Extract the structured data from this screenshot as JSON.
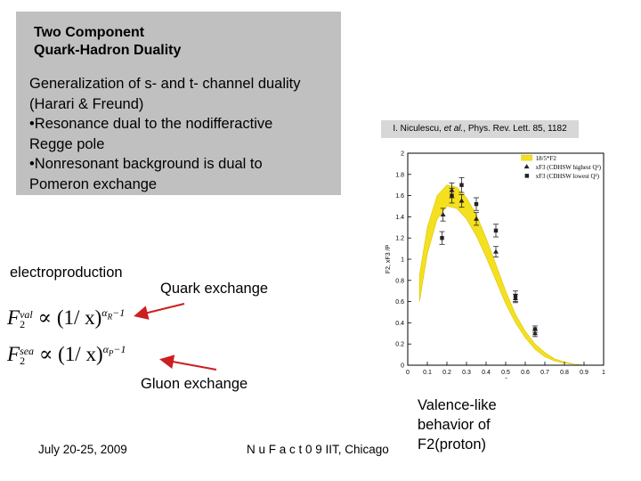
{
  "title": {
    "line1": "Two Component",
    "line2": "Quark-Hadron Duality"
  },
  "body": {
    "lines": [
      "Generalization of s- and t- channel duality",
      "(Harari & Freund)",
      "•Resonance dual to the nodifferactive",
      "Regge pole",
      "•Nonresonant background is dual to",
      "Pomeron exchange"
    ]
  },
  "reference": {
    "author": "I. Niculescu, ",
    "etal": "et al.",
    "journal": ", Phys. Rev. Lett. 85, 1182"
  },
  "labels": {
    "electroproduction": "electroproduction",
    "quark_exchange": "Quark exchange",
    "gluon_exchange": "Gluon exchange"
  },
  "formulas": {
    "val": {
      "lhs": "F",
      "sub": "2",
      "sup": "val",
      "rel": "∝",
      "body": "(1/ x)",
      "exp": "α",
      "exp_sub": "R",
      "exp_tail": "−1"
    },
    "sea": {
      "lhs": "F",
      "sub": "2",
      "sup": "sea",
      "rel": "∝",
      "body": "(1/ x)",
      "exp": "α",
      "exp_sub": "P",
      "exp_tail": "−1"
    }
  },
  "footer": {
    "date": "July 20-25, 2009",
    "venue": "N u F a c t 0 9 IIT, Chicago"
  },
  "valence_note": [
    "Valence-like",
    "behavior of",
    "F2(proton)"
  ],
  "colors": {
    "gray_box": "#c0c0c0",
    "band": "#f5e020",
    "arrow": "#cc1f1f"
  },
  "chart_data": {
    "type": "scatter",
    "title": "",
    "xlabel": "ξ",
    "ylabel": "F2, xF3 /P",
    "xlim": [
      0,
      1
    ],
    "ylim": [
      0,
      2
    ],
    "x_ticks": [
      "0",
      "0.1",
      "0.2",
      "0.3",
      "0.4",
      "0.5",
      "0.6",
      "0.7",
      "0.8",
      "0.9",
      "1"
    ],
    "y_ticks": [
      "0",
      "0.2",
      "0.4",
      "0.6",
      "0.8",
      "1",
      "1.2",
      "1.4",
      "1.6",
      "1.8",
      "2"
    ],
    "legend": {
      "placement": "top-right",
      "entries": [
        "18/5*F2",
        "xF3 (CDHSW highest Q²)",
        "xF3 (CDHSW lowest Q²)"
      ]
    },
    "band": {
      "name": "18/5*F2",
      "x": [
        0.06,
        0.1,
        0.15,
        0.2,
        0.25,
        0.3,
        0.35,
        0.4,
        0.45,
        0.5,
        0.55,
        0.6,
        0.65,
        0.7,
        0.75,
        0.8,
        0.85,
        0.9,
        0.95
      ],
      "lower": [
        0.6,
        1.05,
        1.38,
        1.5,
        1.48,
        1.38,
        1.22,
        1.02,
        0.8,
        0.58,
        0.4,
        0.26,
        0.15,
        0.08,
        0.04,
        0.02,
        0.01,
        0.0,
        0.0
      ],
      "upper": [
        0.85,
        1.3,
        1.6,
        1.7,
        1.68,
        1.58,
        1.42,
        1.2,
        0.95,
        0.7,
        0.48,
        0.32,
        0.2,
        0.12,
        0.06,
        0.03,
        0.01,
        0.0,
        0.0
      ]
    },
    "series": [
      {
        "name": "xF3 (CDHSW highest Q²)",
        "marker": "triangle",
        "points": [
          {
            "x": 0.18,
            "y": 1.42,
            "err": 0.06
          },
          {
            "x": 0.225,
            "y": 1.65,
            "err": 0.07
          },
          {
            "x": 0.275,
            "y": 1.55,
            "err": 0.06
          },
          {
            "x": 0.35,
            "y": 1.38,
            "err": 0.06
          },
          {
            "x": 0.45,
            "y": 1.07,
            "err": 0.05
          },
          {
            "x": 0.55,
            "y": 0.63,
            "err": 0.04
          },
          {
            "x": 0.65,
            "y": 0.3,
            "err": 0.03
          }
        ]
      },
      {
        "name": "xF3 (CDHSW lowest Q²)",
        "marker": "square",
        "points": [
          {
            "x": 0.175,
            "y": 1.2,
            "err": 0.06
          },
          {
            "x": 0.225,
            "y": 1.6,
            "err": 0.07
          },
          {
            "x": 0.275,
            "y": 1.7,
            "err": 0.07
          },
          {
            "x": 0.35,
            "y": 1.52,
            "err": 0.06
          },
          {
            "x": 0.45,
            "y": 1.27,
            "err": 0.06
          },
          {
            "x": 0.55,
            "y": 0.65,
            "err": 0.05
          },
          {
            "x": 0.65,
            "y": 0.34,
            "err": 0.03
          }
        ]
      }
    ]
  }
}
